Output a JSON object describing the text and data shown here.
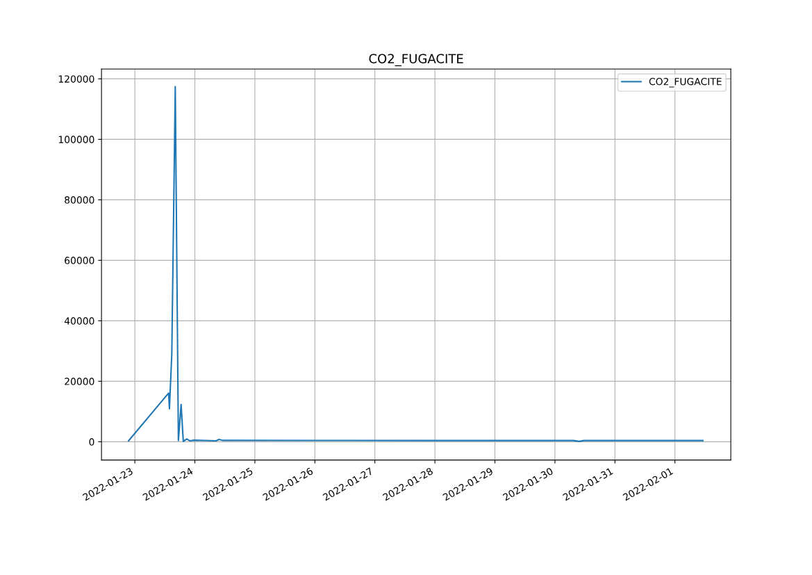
{
  "chart_data": {
    "type": "line",
    "title": "CO2_FUGACITE",
    "x": [
      "2022-01-22T21:30",
      "2022-01-23T13:30",
      "2022-01-23T13:50",
      "2022-01-23T14:47",
      "2022-01-23T16:10",
      "2022-01-23T17:25",
      "2022-01-23T18:30",
      "2022-01-23T19:23",
      "2022-01-23T20:45",
      "2022-01-23T21:55",
      "2022-01-23T23:40",
      "2022-01-24T08:30",
      "2022-01-24T09:42",
      "2022-01-24T11:00",
      "2022-01-26T00:00",
      "2022-01-28T00:00",
      "2022-01-30T07:30",
      "2022-01-30T09:40",
      "2022-01-30T11:30",
      "2022-01-31T12:00",
      "2022-02-01T11:10"
    ],
    "series": [
      {
        "name": "CO2_FUGACITE",
        "color": "#1f77b4",
        "values": [
          300,
          16100,
          10900,
          29100,
          117450,
          400,
          12300,
          100,
          900,
          320,
          500,
          320,
          780,
          450,
          420,
          400,
          390,
          100,
          390,
          390,
          390
        ]
      }
    ],
    "xlim": [
      "2022-01-22T10:40",
      "2022-02-01T22:20"
    ],
    "xticks": [
      "2022-01-23",
      "2022-01-24",
      "2022-01-25",
      "2022-01-26",
      "2022-01-27",
      "2022-01-28",
      "2022-01-29",
      "2022-01-30",
      "2022-01-31",
      "2022-02-01"
    ],
    "ylim": [
      -6040,
      123260
    ],
    "yticks": [
      0,
      20000,
      40000,
      60000,
      80000,
      100000,
      120000
    ],
    "grid": true,
    "legend": "top right",
    "line_style": "solid",
    "marker": "none"
  }
}
